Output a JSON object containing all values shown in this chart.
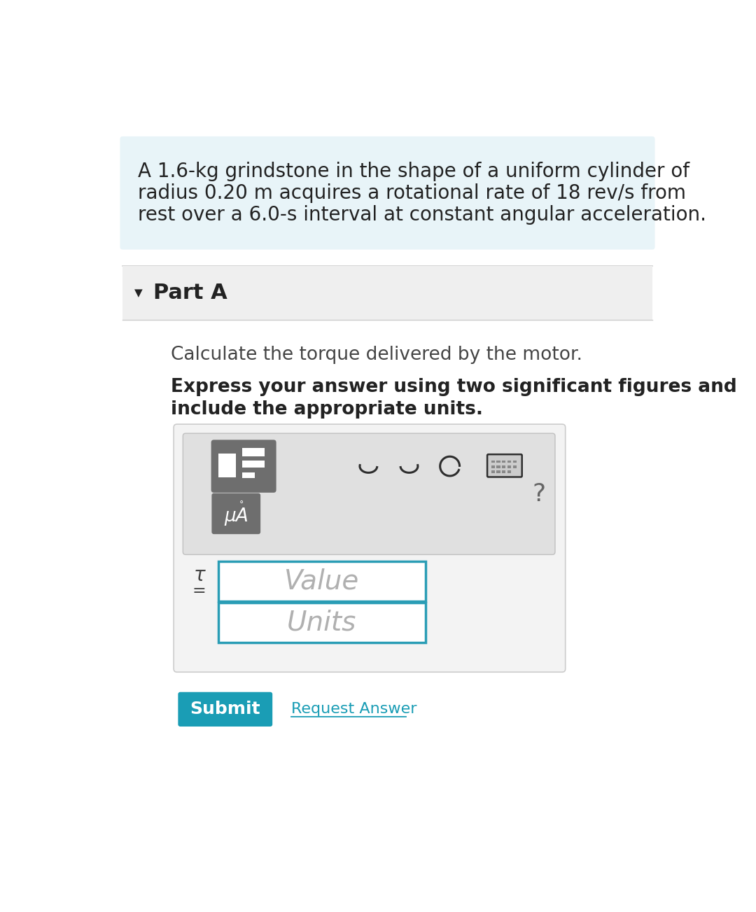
{
  "page_bg": "#ffffff",
  "problem_box_bg": "#e8f4f8",
  "problem_text_line1": "A 1.6-kg grindstone in the shape of a uniform cylinder of",
  "problem_text_line2": "radius 0.20 m acquires a rotational rate of 18 rev/s from",
  "problem_text_line3": "rest over a 6.0-s interval at constant angular acceleration.",
  "part_a_bg": "#efefef",
  "part_a_text": "Part A",
  "triangle": "▼",
  "instruction_text": "Calculate the torque delivered by the motor.",
  "bold_line1": "Express your answer using two significant figures and",
  "bold_line2": "include the appropriate units.",
  "outer_box_bg": "#f3f3f3",
  "outer_box_border": "#cccccc",
  "inner_box_bg": "#e0e0e0",
  "inner_box_border": "#c0c0c0",
  "btn_dark": "#6e6e6e",
  "btn_text": "#ffffff",
  "input_border": "#2a9db5",
  "input_bg": "#ffffff",
  "placeholder_color": "#b0b0b0",
  "value_text": "Value",
  "units_text": "Units",
  "tau_char": "τ",
  "equals_char": "=",
  "mua_text": "μA",
  "question_mark": "?",
  "submit_bg": "#1a9db5",
  "submit_text": "Submit",
  "submit_fg": "#ffffff",
  "request_text": "Request Answer",
  "request_color": "#1a9db5",
  "icon_color": "#2e2e2e",
  "divider_color": "#cccccc",
  "dark_text": "#222222",
  "medium_text": "#444444",
  "light_text": "#777777"
}
